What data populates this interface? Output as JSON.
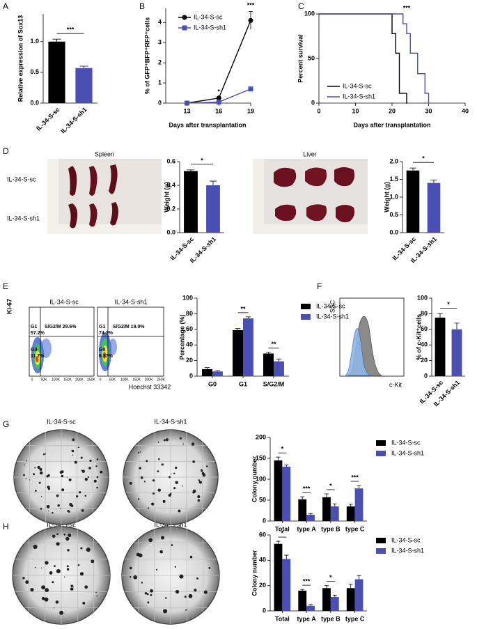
{
  "panel_labels": [
    "A",
    "B",
    "C",
    "D",
    "E",
    "F",
    "G",
    "H"
  ],
  "chart_data": [
    {
      "type": "bar",
      "y_label": "Relative expression of Sox13",
      "categories": [
        "IL-34-S-sc",
        "IL-34-S-sh1"
      ],
      "values": [
        1.0,
        0.57
      ],
      "errors": [
        0.04,
        0.03
      ],
      "colors": [
        "#000000",
        "#4b4fb3"
      ],
      "ylim": [
        0,
        1.45
      ],
      "yticks": [
        {
          "value": 0,
          "label": "0.0"
        },
        {
          "value": 0.5,
          "label": "0.5"
        },
        {
          "value": 1,
          "label": "1.0"
        }
      ],
      "annotations": [
        {
          "text": "***"
        }
      ]
    },
    {
      "type": "line",
      "y_label": "% of GFP⁺BFP⁺RFP⁺cells",
      "x_label": "Days after transplantation",
      "x": [
        13,
        16,
        19
      ],
      "series": [
        {
          "name": "IL-34-S-sc",
          "color": "#000000",
          "marker": "circle",
          "values": [
            0,
            0.25,
            4.1
          ],
          "errors": [
            0,
            0.02,
            0.45
          ]
        },
        {
          "name": "IL-34-S-sh1",
          "color": "#4b4fb3",
          "marker": "square",
          "values": [
            0,
            0.05,
            0.7
          ],
          "errors": [
            0,
            0.01,
            0.08
          ]
        }
      ],
      "xlim": [
        11,
        19
      ],
      "xticks": [
        13,
        16,
        19
      ],
      "ylim": [
        0,
        4.7
      ],
      "yticks": [
        0,
        1,
        2,
        3,
        4
      ],
      "legend": true,
      "annotations": [
        {
          "text": "*",
          "x": 16
        },
        {
          "text": "***",
          "x": 19
        }
      ]
    },
    {
      "type": "survival",
      "y_label": "Percent survival",
      "x_label": "Days after transplantation",
      "series": [
        {
          "name": "IL-34-S-sc",
          "color": "#000000",
          "x": [
            0,
            20,
            21,
            22,
            24
          ],
          "values": [
            100,
            78,
            56,
            11,
            0
          ]
        },
        {
          "name": "IL-34-S-sh1",
          "color": "#4b4fb3",
          "x": [
            0,
            23,
            24,
            25,
            27,
            29,
            30
          ],
          "values": [
            100,
            89,
            78,
            56,
            33,
            11,
            0
          ]
        }
      ],
      "xlim": [
        0,
        40
      ],
      "xticks": [
        0,
        10,
        20,
        30,
        40
      ],
      "ylim": [
        0,
        100
      ],
      "yticks": [
        0,
        50,
        100
      ],
      "legend": true,
      "annotations": [
        {
          "text": "***",
          "x": 24
        }
      ]
    },
    {
      "type": "bar",
      "y_label": "Weight (g)",
      "categories": [
        "IL-34-S-sc",
        "IL-34-S-sh1"
      ],
      "values": [
        0.52,
        0.4
      ],
      "errors": [
        0.01,
        0.035
      ],
      "colors": [
        "#000000",
        "#4b4fb3"
      ],
      "ylim": [
        0,
        0.6
      ],
      "yticks": [
        {
          "value": 0,
          "label": "0.0"
        },
        {
          "value": 0.2,
          "label": "0.2"
        },
        {
          "value": 0.4,
          "label": "0.4"
        },
        {
          "value": 0.6,
          "label": "0.6"
        }
      ],
      "annotations": [
        {
          "text": "*"
        }
      ]
    },
    {
      "type": "bar",
      "y_label": "Weight (g)",
      "categories": [
        "IL-34-S-sc",
        "IL-34-S-sh1"
      ],
      "values": [
        1.75,
        1.4
      ],
      "errors": [
        0.07,
        0.08
      ],
      "colors": [
        "#000000",
        "#4b4fb3"
      ],
      "ylim": [
        0,
        2
      ],
      "yticks": [
        {
          "value": 0,
          "label": "0.0"
        },
        {
          "value": 0.5,
          "label": "0.5"
        },
        {
          "value": 1,
          "label": "1.0"
        },
        {
          "value": 1.5,
          "label": "1.5"
        },
        {
          "value": 2,
          "label": "2.0"
        }
      ],
      "annotations": [
        {
          "text": "*"
        }
      ]
    },
    {
      "type": "grouped_bar",
      "y_label": "Percentage (%)",
      "categories": [
        "G0",
        "G1",
        "S/G2/M"
      ],
      "series": [
        {
          "name": "IL-34-S-sc",
          "color": "#000000",
          "values": [
            9,
            59,
            29
          ],
          "errors": [
            2,
            2,
            1.5
          ]
        },
        {
          "name": "IL-34-S-sh1",
          "color": "#4b4fb3",
          "values": [
            6,
            74,
            19
          ],
          "errors": [
            1,
            2,
            3
          ]
        }
      ],
      "ylim": [
        0,
        100
      ],
      "yticks": [
        0,
        20,
        40,
        60,
        80,
        100
      ],
      "legend": true,
      "annotations": [
        {
          "text": "**",
          "category": 1
        },
        {
          "text": "**",
          "category": 2
        }
      ]
    },
    {
      "type": "bar",
      "y_label": "% of c-Kit⁺cells",
      "categories": [
        "IL-34-S-sc",
        "IL-34-S-sh1"
      ],
      "values": [
        75,
        60
      ],
      "errors": [
        5,
        8
      ],
      "colors": [
        "#000000",
        "#4b4fb3"
      ],
      "ylim": [
        0,
        100
      ],
      "yticks": [
        0,
        20,
        40,
        60,
        80,
        100
      ],
      "annotations": [
        {
          "text": "*"
        }
      ]
    },
    {
      "type": "grouped_bar",
      "y_label": "Colony number",
      "categories": [
        "Total",
        "type A",
        "type B",
        "type C"
      ],
      "series": [
        {
          "name": "IL-34-S-sc",
          "color": "#000000",
          "values": [
            145,
            52,
            57,
            35
          ],
          "errors": [
            8,
            6,
            8,
            5
          ]
        },
        {
          "name": "IL-34-S-sh1",
          "color": "#4b4fb3",
          "values": [
            130,
            15,
            35,
            78
          ],
          "errors": [
            4,
            3,
            6,
            7
          ]
        }
      ],
      "ylim": [
        0,
        200
      ],
      "yticks": [
        0,
        50,
        100,
        150,
        200
      ],
      "legend": true,
      "annotations": [
        {
          "text": "*",
          "category": 0
        },
        {
          "text": "***",
          "category": 1
        },
        {
          "text": "*",
          "category": 2
        },
        {
          "text": "***",
          "category": 3
        }
      ]
    },
    {
      "type": "grouped_bar",
      "y_label": "Colony number",
      "categories": [
        "Total",
        "type A",
        "type B",
        "type C"
      ],
      "series": [
        {
          "name": "IL-34-S-sc",
          "color": "#000000",
          "values": [
            53,
            16,
            18,
            18
          ],
          "errors": [
            2,
            1,
            2,
            3
          ]
        },
        {
          "name": "IL-34-S-sh1",
          "color": "#4b4fb3",
          "values": [
            41,
            4,
            11,
            25
          ],
          "errors": [
            3,
            1,
            1.5,
            3
          ]
        }
      ],
      "ylim": [
        0,
        60
      ],
      "yticks": [
        0,
        20,
        40,
        60
      ],
      "legend": true,
      "annotations": [
        {
          "text": "*",
          "category": 0
        },
        {
          "text": "***",
          "category": 1
        },
        {
          "text": "*",
          "category": 2
        }
      ]
    }
  ],
  "photos": {
    "spleen_title": "Spleen",
    "liver_title": "Liver",
    "rows": [
      "IL-34-S-sc",
      "IL-34-S-sh1"
    ]
  },
  "flow_cytometry": {
    "y_label": "Ki-67",
    "x_label": "Hoechst 33342",
    "x_ticks": [
      "0",
      "50K",
      "100K",
      "150K",
      "200K",
      "250K"
    ],
    "plots": [
      {
        "title": "IL-34-S-sc",
        "g1": "G1",
        "g1_value": "57.2%",
        "sg2m": "S/G2/M 29.6%",
        "g0": "G0",
        "g0_value": "11.7%"
      },
      {
        "title": "IL-34-S-sh1",
        "g1": "G1",
        "g1_value": "74.3%",
        "sg2m": "S/G2/M 19.0%",
        "g0": "G0",
        "g0_value": "6.37%"
      }
    ]
  },
  "histogram": {
    "y_label": "SSC",
    "x_label": "c-Kit"
  },
  "colonies": [
    {
      "titles": [
        "IL-34-S-sc",
        "IL-34-S-sh1"
      ]
    },
    {
      "titles": [
        "IL-34-S-sc",
        "IL-34-S-sh1"
      ]
    }
  ]
}
